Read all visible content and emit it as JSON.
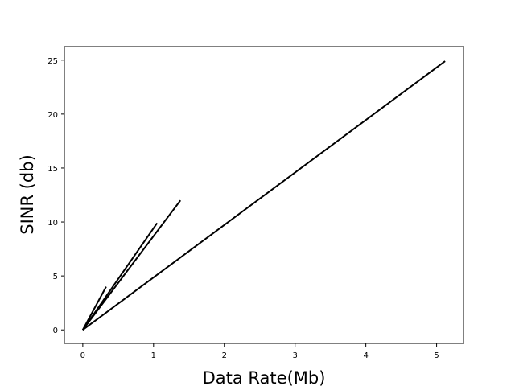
{
  "chart_data": {
    "type": "line",
    "title": "",
    "xlabel": "Data Rate(Mb)",
    "ylabel": "SINR (db)",
    "xlim": [
      -0.26,
      5.38
    ],
    "ylim": [
      -1.25,
      26.25
    ],
    "x_ticks": [
      0,
      1,
      2,
      3,
      4,
      5
    ],
    "y_ticks": [
      0,
      5,
      10,
      15,
      20,
      25
    ],
    "grid": false,
    "legend": "none",
    "line_color": "#000000",
    "series": [
      {
        "x": [
          0.0,
          0.33
        ],
        "y": [
          0.0,
          4.0
        ]
      },
      {
        "x": [
          0.0,
          1.05
        ],
        "y": [
          0.0,
          9.9
        ]
      },
      {
        "x": [
          0.0,
          1.38
        ],
        "y": [
          0.0,
          12.0
        ]
      },
      {
        "x": [
          0.0,
          5.12
        ],
        "y": [
          0.0,
          24.9
        ]
      }
    ]
  }
}
